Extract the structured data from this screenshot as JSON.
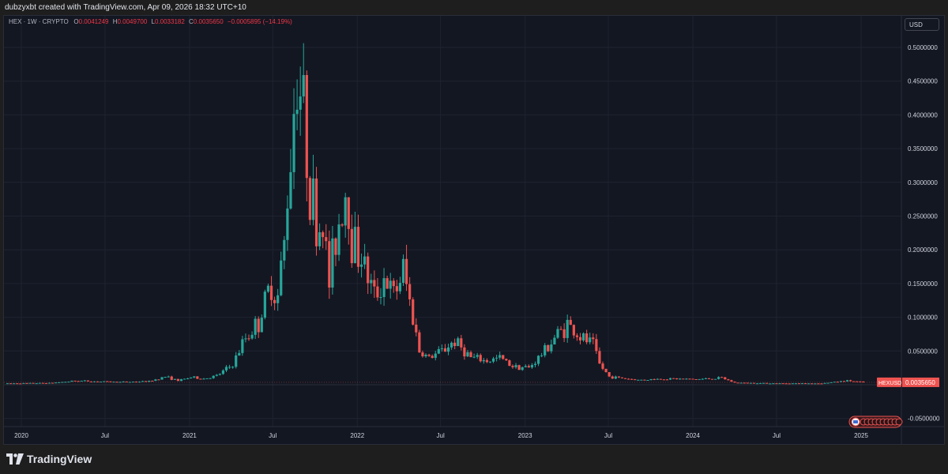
{
  "header": {
    "text": "dubzyxbt created with TradingView.com, Apr 09, 2026 18:32 UTC+10"
  },
  "legend": {
    "symbol": "HEX · 1W · CRYPTO",
    "o_label": "O",
    "o_value": "0.0041249",
    "h_label": "H",
    "h_value": "0.0049700",
    "l_label": "L",
    "l_value": "0.0033182",
    "c_label": "C",
    "c_value": "0.0035650",
    "change": "−0.0005895 (−14.19%)"
  },
  "currency_button": "USD",
  "price_tag": {
    "symbol": "HEXUSD",
    "value": "0.0035650"
  },
  "footer": {
    "brand": "TradingView"
  },
  "colors": {
    "up": "#26a69a",
    "down": "#ef5350",
    "background": "#131722",
    "grid": "#1f2330",
    "text": "#d1d4dc"
  },
  "chart_data": {
    "type": "candlestick",
    "interval": "1W",
    "symbol": "HEXUSD",
    "grid": true,
    "ylim": [
      -0.055,
      0.525
    ],
    "y_ticks": [
      "0.5000000",
      "0.4500000",
      "0.4000000",
      "0.3500000",
      "0.3000000",
      "0.2500000",
      "0.2000000",
      "0.1500000",
      "0.1000000",
      "0.0500000",
      "-0.0500000"
    ],
    "y_tick_values": [
      0.5,
      0.45,
      0.4,
      0.35,
      0.3,
      0.25,
      0.2,
      0.15,
      0.1,
      0.05,
      -0.05
    ],
    "x_ticks": [
      "2020",
      "Jul",
      "2021",
      "Jul",
      "2022",
      "Jul",
      "2023",
      "Jul",
      "2024",
      "Jul",
      "2025"
    ],
    "x_tick_dates": [
      "2020-01-01",
      "2020-07-01",
      "2021-01-01",
      "2021-07-01",
      "2022-01-01",
      "2022-07-01",
      "2023-01-01",
      "2023-07-01",
      "2024-01-01",
      "2024-07-01",
      "2025-01-01"
    ],
    "x_start": "2019-12-02",
    "x_end": "2025-01-06",
    "series": [
      {
        "date": "2019-12-02",
        "close": 0.002
      },
      {
        "date": "2020-03-02",
        "close": 0.0025
      },
      {
        "date": "2020-05-04",
        "close": 0.006
      },
      {
        "date": "2020-06-01",
        "close": 0.005
      },
      {
        "date": "2020-08-03",
        "close": 0.004
      },
      {
        "date": "2020-10-05",
        "close": 0.005
      },
      {
        "date": "2020-11-09",
        "close": 0.012
      },
      {
        "date": "2020-12-07",
        "close": 0.006
      },
      {
        "date": "2021-01-04",
        "close": 0.011
      },
      {
        "date": "2021-02-01",
        "close": 0.009
      },
      {
        "date": "2021-03-01",
        "close": 0.013
      },
      {
        "date": "2021-04-05",
        "close": 0.03
      },
      {
        "date": "2021-05-03",
        "close": 0.07
      },
      {
        "date": "2021-05-31",
        "close": 0.092
      },
      {
        "date": "2021-06-28",
        "close": 0.15
      },
      {
        "date": "2021-07-12",
        "close": 0.13
      },
      {
        "date": "2021-07-26",
        "close": 0.21
      },
      {
        "date": "2021-08-09",
        "close": 0.35
      },
      {
        "date": "2021-08-23",
        "close": 0.48
      },
      {
        "date": "2021-09-06",
        "close": 0.4
      },
      {
        "date": "2021-09-20",
        "close": 0.3
      },
      {
        "date": "2021-10-04",
        "close": 0.23
      },
      {
        "date": "2021-10-18",
        "close": 0.24
      },
      {
        "date": "2021-11-01",
        "close": 0.15
      },
      {
        "date": "2021-11-15",
        "close": 0.22
      },
      {
        "date": "2021-12-06",
        "close": 0.29
      },
      {
        "date": "2021-12-20",
        "close": 0.22
      },
      {
        "date": "2022-01-10",
        "close": 0.19
      },
      {
        "date": "2022-02-07",
        "close": 0.13
      },
      {
        "date": "2022-02-28",
        "close": 0.16
      },
      {
        "date": "2022-03-21",
        "close": 0.13
      },
      {
        "date": "2022-04-11",
        "close": 0.17
      },
      {
        "date": "2022-05-02",
        "close": 0.1
      },
      {
        "date": "2022-05-16",
        "close": 0.05
      },
      {
        "date": "2022-06-06",
        "close": 0.04
      },
      {
        "date": "2022-07-04",
        "close": 0.05
      },
      {
        "date": "2022-08-01",
        "close": 0.065
      },
      {
        "date": "2022-09-05",
        "close": 0.04
      },
      {
        "date": "2022-10-10",
        "close": 0.035
      },
      {
        "date": "2022-11-07",
        "close": 0.04
      },
      {
        "date": "2022-12-05",
        "close": 0.028
      },
      {
        "date": "2023-01-09",
        "close": 0.025
      },
      {
        "date": "2023-02-06",
        "close": 0.045
      },
      {
        "date": "2023-03-06",
        "close": 0.07
      },
      {
        "date": "2023-04-03",
        "close": 0.09
      },
      {
        "date": "2023-05-01",
        "close": 0.07
      },
      {
        "date": "2023-05-29",
        "close": 0.06
      },
      {
        "date": "2023-06-12",
        "close": 0.03
      },
      {
        "date": "2023-07-03",
        "close": 0.012
      },
      {
        "date": "2023-09-04",
        "close": 0.007
      },
      {
        "date": "2023-11-06",
        "close": 0.009
      },
      {
        "date": "2024-01-08",
        "close": 0.008
      },
      {
        "date": "2024-03-04",
        "close": 0.01
      },
      {
        "date": "2024-04-01",
        "close": 0.003
      },
      {
        "date": "2024-07-01",
        "close": 0.002
      },
      {
        "date": "2024-10-07",
        "close": 0.002
      },
      {
        "date": "2024-12-02",
        "close": 0.006
      },
      {
        "date": "2025-01-06",
        "close": 0.0036
      }
    ]
  }
}
